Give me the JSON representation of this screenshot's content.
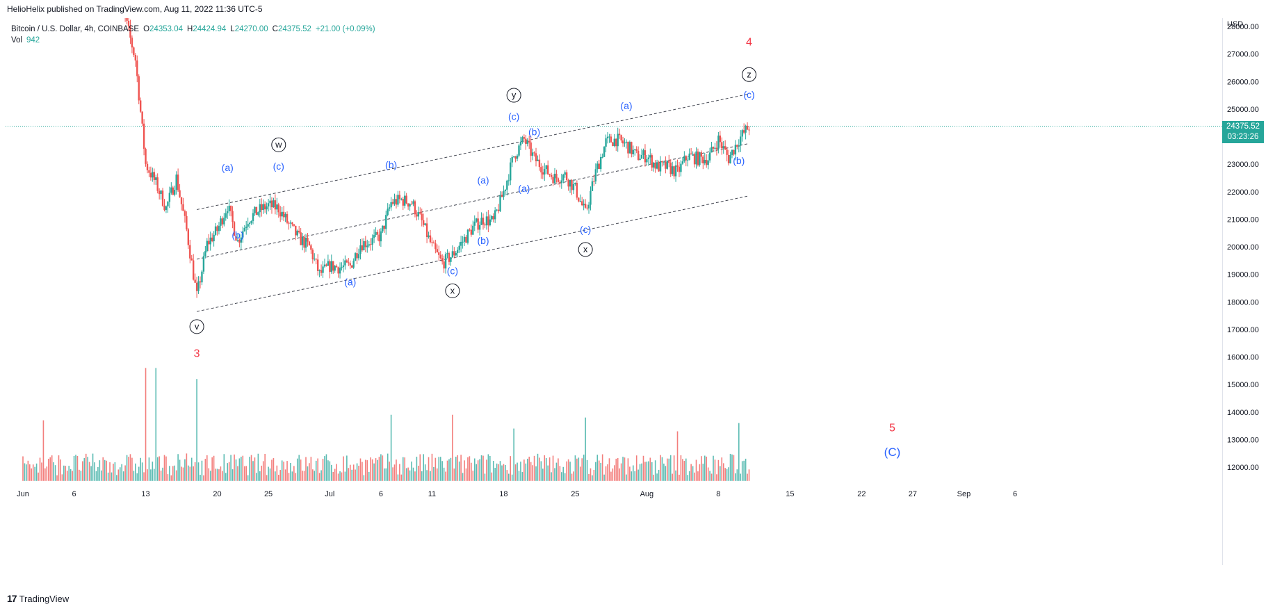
{
  "header": {
    "published_line": "HelioHelix published on TradingView.com, Aug 11, 2022 11:36 UTC-5"
  },
  "legend": {
    "symbol_line": "Bitcoin / U.S. Dollar, 4h, COINBASE",
    "o_label": "O",
    "o_value": "24353.04",
    "h_label": "H",
    "h_value": "24424.94",
    "l_label": "L",
    "l_value": "24270.00",
    "c_label": "C",
    "c_value": "24375.52",
    "change": "+21.00 (+0.09%)",
    "vol_label": "Vol",
    "vol_value": "942"
  },
  "price_axis": {
    "currency": "USD",
    "last_price": "24375.52",
    "countdown": "03:23:26"
  },
  "footer": {
    "brand": "TradingView",
    "logo_text": "17"
  },
  "colors": {
    "up": "#26a69a",
    "down": "#ef5350",
    "label_blue": "#2962ff",
    "wave_red": "#f23645",
    "channel": "#434651",
    "last_price_line": "#26a69a"
  },
  "chart_data": {
    "type": "candlestick",
    "title": "Bitcoin / U.S. Dollar, 4h, COINBASE",
    "ylabel": "USD",
    "ylim": [
      11500,
      28600
    ],
    "y_ticks": [
      12000,
      13000,
      14000,
      15000,
      16000,
      17000,
      18000,
      19000,
      20000,
      21000,
      22000,
      23000,
      24000,
      25000,
      26000,
      27000,
      28000
    ],
    "x_ticks": [
      {
        "label": "Jun",
        "date": "2022-06-01"
      },
      {
        "label": "6",
        "date": "2022-06-06"
      },
      {
        "label": "13",
        "date": "2022-06-13"
      },
      {
        "label": "20",
        "date": "2022-06-20"
      },
      {
        "label": "25",
        "date": "2022-06-25"
      },
      {
        "label": "Jul",
        "date": "2022-07-01"
      },
      {
        "label": "6",
        "date": "2022-07-06"
      },
      {
        "label": "11",
        "date": "2022-07-11"
      },
      {
        "label": "18",
        "date": "2022-07-18"
      },
      {
        "label": "25",
        "date": "2022-07-25"
      },
      {
        "label": "Aug",
        "date": "2022-08-01"
      },
      {
        "label": "8",
        "date": "2022-08-08"
      },
      {
        "label": "15",
        "date": "2022-08-15"
      },
      {
        "label": "22",
        "date": "2022-08-22"
      },
      {
        "label": "27",
        "date": "2022-08-27"
      },
      {
        "label": "Sep",
        "date": "2022-09-01"
      },
      {
        "label": "6",
        "date": "2022-09-06"
      }
    ],
    "price_path": [
      [
        "2022-06-10",
        28800
      ],
      [
        "2022-06-11",
        28300
      ],
      [
        "2022-06-12",
        26800
      ],
      [
        "2022-06-13",
        23000
      ],
      [
        "2022-06-14",
        22300
      ],
      [
        "2022-06-15",
        21400
      ],
      [
        "2022-06-16",
        22500
      ],
      [
        "2022-06-17",
        20600
      ],
      [
        "2022-06-18",
        18200
      ],
      [
        "2022-06-19",
        20100
      ],
      [
        "2022-06-20",
        20600
      ],
      [
        "2022-06-21",
        21500
      ],
      [
        "2022-06-22",
        20200
      ],
      [
        "2022-06-23",
        21000
      ],
      [
        "2022-06-24",
        21300
      ],
      [
        "2022-06-25",
        21500
      ],
      [
        "2022-06-26",
        21400
      ],
      [
        "2022-06-27",
        20800
      ],
      [
        "2022-06-28",
        20300
      ],
      [
        "2022-06-29",
        20000
      ],
      [
        "2022-06-30",
        19000
      ],
      [
        "2022-07-01",
        19300
      ],
      [
        "2022-07-02",
        19250
      ],
      [
        "2022-07-03",
        19300
      ],
      [
        "2022-07-04",
        20100
      ],
      [
        "2022-07-05",
        20200
      ],
      [
        "2022-07-06",
        20400
      ],
      [
        "2022-07-07",
        21600
      ],
      [
        "2022-07-08",
        21700
      ],
      [
        "2022-07-09",
        21600
      ],
      [
        "2022-07-10",
        20900
      ],
      [
        "2022-07-11",
        20000
      ],
      [
        "2022-07-12",
        19400
      ],
      [
        "2022-07-13",
        19700
      ],
      [
        "2022-07-14",
        20200
      ],
      [
        "2022-07-15",
        20700
      ],
      [
        "2022-07-16",
        21000
      ],
      [
        "2022-07-17",
        20900
      ],
      [
        "2022-07-18",
        22000
      ],
      [
        "2022-07-19",
        23300
      ],
      [
        "2022-07-20",
        23900
      ],
      [
        "2022-07-21",
        23200
      ],
      [
        "2022-07-22",
        22800
      ],
      [
        "2022-07-23",
        22500
      ],
      [
        "2022-07-24",
        22600
      ],
      [
        "2022-07-25",
        22100
      ],
      [
        "2022-07-26",
        21200
      ],
      [
        "2022-07-27",
        22700
      ],
      [
        "2022-07-28",
        23800
      ],
      [
        "2022-07-29",
        23900
      ],
      [
        "2022-07-30",
        23700
      ],
      [
        "2022-07-31",
        23300
      ],
      [
        "2022-08-01",
        23300
      ],
      [
        "2022-08-02",
        22900
      ],
      [
        "2022-08-03",
        22900
      ],
      [
        "2022-08-04",
        22700
      ],
      [
        "2022-08-05",
        23300
      ],
      [
        "2022-08-06",
        23200
      ],
      [
        "2022-08-07",
        23200
      ],
      [
        "2022-08-08",
        23900
      ],
      [
        "2022-08-09",
        23200
      ],
      [
        "2022-08-10",
        23900
      ],
      [
        "2022-08-11",
        24375
      ]
    ],
    "volume_peaks": [
      {
        "date": "2022-06-13",
        "value": 15600,
        "direction": "down"
      },
      {
        "date": "2022-06-14",
        "value": 15600,
        "direction": "up"
      },
      {
        "date": "2022-06-18",
        "value": 15200,
        "direction": "up"
      },
      {
        "date": "2022-06-03",
        "value": 13700,
        "direction": "down"
      },
      {
        "date": "2022-07-07",
        "value": 13900,
        "direction": "up"
      },
      {
        "date": "2022-07-13",
        "value": 13900,
        "direction": "down"
      },
      {
        "date": "2022-07-19",
        "value": 13400,
        "direction": "up"
      },
      {
        "date": "2022-07-26",
        "value": 13800,
        "direction": "up"
      },
      {
        "date": "2022-08-04",
        "value": 13300,
        "direction": "down"
      },
      {
        "date": "2022-08-10",
        "value": 13600,
        "direction": "up"
      }
    ],
    "channel_lines": [
      {
        "from": [
          "2022-06-18",
          21350
        ],
        "to": [
          "2022-08-11",
          25550
        ]
      },
      {
        "from": [
          "2022-06-18",
          19550
        ],
        "to": [
          "2022-08-11",
          23750
        ]
      },
      {
        "from": [
          "2022-06-18",
          17650
        ],
        "to": [
          "2022-08-11",
          21850
        ]
      }
    ],
    "last_price": 24375.52,
    "annotations": [
      {
        "text": "4",
        "date": "2022-08-11",
        "y": 27300,
        "style": "red"
      },
      {
        "text": "z",
        "date": "2022-08-11",
        "y": 26150,
        "style": "circle"
      },
      {
        "text": "(c)",
        "date": "2022-08-11",
        "y": 25400,
        "style": "blue"
      },
      {
        "text": "y",
        "date": "2022-07-19",
        "y": 25400,
        "style": "circle"
      },
      {
        "text": "(c)",
        "date": "2022-07-19",
        "y": 24600,
        "style": "blue"
      },
      {
        "text": "(b)",
        "date": "2022-07-21",
        "y": 24050,
        "style": "blue"
      },
      {
        "text": "(a)",
        "date": "2022-07-30",
        "y": 25000,
        "style": "blue"
      },
      {
        "text": "(a)",
        "date": "2022-07-20",
        "y": 22000,
        "style": "blue"
      },
      {
        "text": "(a)",
        "date": "2022-07-16",
        "y": 22300,
        "style": "blue"
      },
      {
        "text": "(b)",
        "date": "2022-07-16",
        "y": 20100,
        "style": "blue"
      },
      {
        "text": "(b)",
        "date": "2022-07-07",
        "y": 22850,
        "style": "blue"
      },
      {
        "text": "(c)",
        "date": "2022-07-13",
        "y": 19000,
        "style": "blue"
      },
      {
        "text": "x",
        "date": "2022-07-13",
        "y": 18300,
        "style": "circle"
      },
      {
        "text": "(a)",
        "date": "2022-07-03",
        "y": 18600,
        "style": "blue"
      },
      {
        "text": "(c)",
        "date": "2022-07-26",
        "y": 20500,
        "style": "blue"
      },
      {
        "text": "x",
        "date": "2022-07-26",
        "y": 19800,
        "style": "circle"
      },
      {
        "text": "(b)",
        "date": "2022-08-10",
        "y": 23000,
        "style": "blue"
      },
      {
        "text": "w",
        "date": "2022-06-26",
        "y": 23600,
        "style": "circle"
      },
      {
        "text": "(a)",
        "date": "2022-06-21",
        "y": 22750,
        "style": "blue"
      },
      {
        "text": "(c)",
        "date": "2022-06-26",
        "y": 22800,
        "style": "blue"
      },
      {
        "text": "(b)",
        "date": "2022-06-22",
        "y": 20300,
        "style": "blue"
      },
      {
        "text": "v",
        "date": "2022-06-18",
        "y": 17000,
        "style": "circle"
      },
      {
        "text": "3",
        "date": "2022-06-18",
        "y": 16000,
        "style": "red"
      },
      {
        "text": "5",
        "date": "2022-08-25",
        "y": 13300,
        "style": "red"
      },
      {
        "text": "(C)",
        "date": "2022-08-25",
        "y": 12400,
        "style": "blue-large"
      }
    ]
  }
}
